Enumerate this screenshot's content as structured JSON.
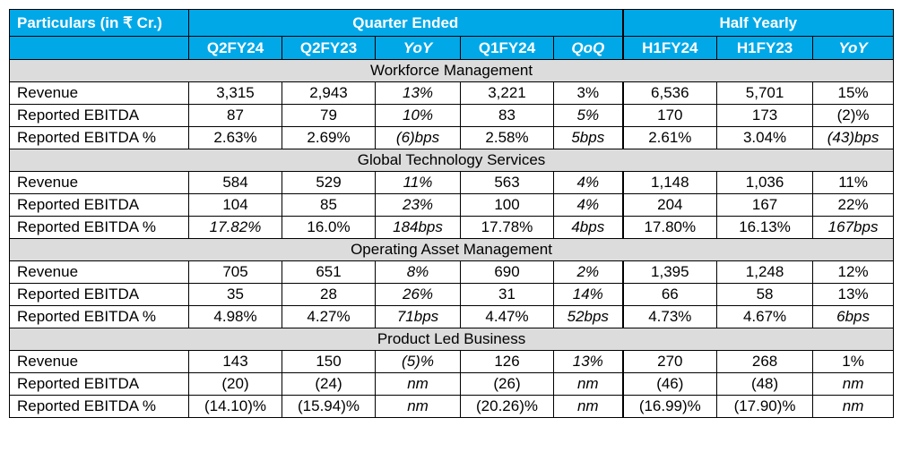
{
  "header": {
    "particulars": "Particulars (in ₹ Cr.)",
    "quarter_group": "Quarter Ended",
    "half_group": "Half Yearly",
    "columns": [
      "Q2FY24",
      "Q2FY23",
      "YoY",
      "Q1FY24",
      "QoQ",
      "H1FY24",
      "H1FY23",
      "YoY"
    ]
  },
  "sections": [
    {
      "title": "Workforce Management",
      "rows": [
        {
          "label": "Revenue",
          "cells": [
            "3,315",
            "2,943",
            "13%",
            "3,221",
            "3%",
            "6,536",
            "5,701",
            "15%"
          ]
        },
        {
          "label": "Reported EBITDA",
          "cells": [
            "87",
            "79",
            "10%",
            "83",
            "5%",
            "170",
            "173",
            "(2)%"
          ]
        },
        {
          "label": "Reported EBITDA %",
          "cells": [
            "2.63%",
            "2.69%",
            "(6)bps",
            "2.58%",
            "5bps",
            "2.61%",
            "3.04%",
            "(43)bps"
          ]
        }
      ]
    },
    {
      "title": "Global Technology Services",
      "rows": [
        {
          "label": "Revenue",
          "cells": [
            "584",
            "529",
            "11%",
            "563",
            "4%",
            "1,148",
            "1,036",
            "11%"
          ]
        },
        {
          "label": "Reported EBITDA",
          "cells": [
            "104",
            "85",
            "23%",
            "100",
            "4%",
            "204",
            "167",
            "22%"
          ]
        },
        {
          "label": "Reported EBITDA %",
          "cells": [
            "17.82%",
            "16.0%",
            "184bps",
            "17.78%",
            "4bps",
            "17.80%",
            "16.13%",
            "167bps"
          ]
        }
      ]
    },
    {
      "title": "Operating Asset Management",
      "rows": [
        {
          "label": "Revenue",
          "cells": [
            "705",
            "651",
            "8%",
            "690",
            "2%",
            "1,395",
            "1,248",
            "12%"
          ]
        },
        {
          "label": "Reported EBITDA",
          "cells": [
            "35",
            "28",
            "26%",
            "31",
            "14%",
            "66",
            "58",
            "13%"
          ]
        },
        {
          "label": "Reported EBITDA %",
          "cells": [
            "4.98%",
            "4.27%",
            "71bps",
            "4.47%",
            "52bps",
            "4.73%",
            "4.67%",
            "6bps"
          ]
        }
      ]
    },
    {
      "title": "Product Led Business",
      "rows": [
        {
          "label": "Revenue",
          "cells": [
            "143",
            "150",
            "(5)%",
            "126",
            "13%",
            "270",
            "268",
            "1%"
          ]
        },
        {
          "label": "Reported EBITDA",
          "cells": [
            "(20)",
            "(24)",
            "nm",
            "(26)",
            "nm",
            "(46)",
            "(48)",
            "nm"
          ]
        },
        {
          "label": "Reported EBITDA %",
          "cells": [
            "(14.10)%",
            "(15.94)%",
            "nm",
            "(20.26)%",
            "nm",
            "(16.99)%",
            "(17.90)%",
            "nm"
          ]
        }
      ]
    }
  ],
  "colors": {
    "header_bg": "#00a8e8",
    "header_text": "#ffffff",
    "section_bg": "#dcdcdc"
  }
}
